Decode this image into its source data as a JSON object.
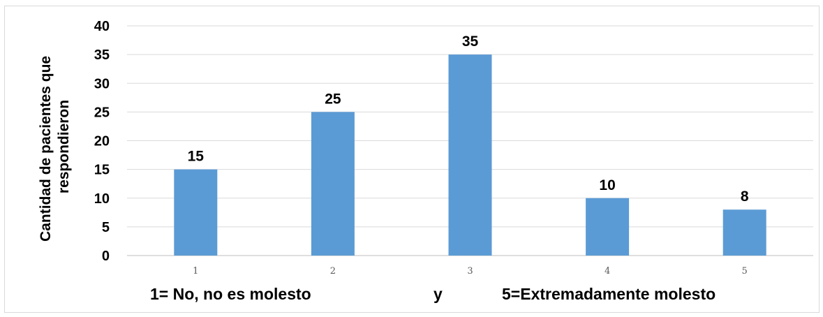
{
  "chart_data": {
    "type": "bar",
    "categories": [
      "1",
      "2",
      "3",
      "4",
      "5"
    ],
    "values": [
      15,
      25,
      35,
      10,
      8
    ],
    "data_labels": [
      "15",
      "25",
      "35",
      "10",
      "8"
    ],
    "ylim": [
      0,
      40
    ],
    "yticks": [
      "0",
      "5",
      "10",
      "15",
      "20",
      "25",
      "30",
      "35",
      "40"
    ],
    "ylabel_lines": [
      "Cantidad de pacientes que",
      "respondieron"
    ],
    "xlabel_parts": [
      "1= No, no es molesto",
      "y",
      "5=Extremadamente molesto"
    ],
    "grid": true,
    "legend": "none",
    "bar_color": "#5b9bd5",
    "grid_color": "#d9d9d9"
  }
}
